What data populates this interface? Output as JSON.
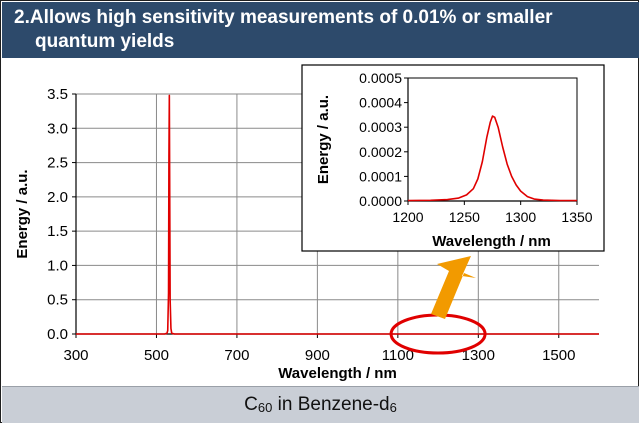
{
  "title": {
    "line1": "2.Allows high sensitivity measurements of 0.01% or smaller",
    "line2": "quantum yields"
  },
  "footer": {
    "prefix": "C",
    "sub1": "60",
    "middle": " in Benzene-d",
    "sub2": "6"
  },
  "colors": {
    "title_bar": "#2d4a6b",
    "series": "#e00000",
    "highlight_circle": "#e00000",
    "arrow": "#f29a00",
    "footer_bg": "#c9ced6"
  },
  "chart_data": [
    {
      "type": "line",
      "xlabel": "Wavelength / nm",
      "ylabel": "Energy / a.u.",
      "xlim": [
        300,
        1600
      ],
      "ylim": [
        0,
        3.5
      ],
      "x_ticks": [
        300,
        500,
        700,
        900,
        1100,
        1300,
        1500
      ],
      "y_ticks": [
        "0.0",
        "0.5",
        "1.0",
        "1.5",
        "2.0",
        "2.5",
        "3.0",
        "3.5"
      ],
      "grid": true,
      "series": [
        {
          "x": [
            300,
            520,
            526,
            528,
            530,
            531,
            532,
            533,
            534,
            536,
            538,
            545,
            600,
            1600
          ],
          "y": [
            0,
            0,
            0.01,
            0.05,
            0.6,
            2.6,
            3.48,
            2.0,
            0.5,
            0.08,
            0.01,
            0,
            0,
            0
          ]
        }
      ],
      "annotation": {
        "shape": "ellipse",
        "x_center": 1200,
        "y_center": 0,
        "note": "highlights emission region around 1275 nm"
      }
    },
    {
      "type": "line",
      "xlabel": "Wavelength / nm",
      "ylabel": "Energy / a.u.",
      "xlim": [
        1200,
        1350
      ],
      "ylim": [
        0,
        0.0005
      ],
      "x_ticks": [
        1200,
        1250,
        1300,
        1350
      ],
      "y_ticks": [
        "0.0000",
        "0.0001",
        "0.0002",
        "0.0003",
        "0.0004",
        "0.0005"
      ],
      "grid": false,
      "series": [
        {
          "x": [
            1200,
            1220,
            1235,
            1245,
            1252,
            1258,
            1262,
            1266,
            1270,
            1273,
            1275,
            1277,
            1280,
            1284,
            1288,
            1292,
            1296,
            1300,
            1306,
            1312,
            1320,
            1335,
            1350
          ],
          "y": [
            2e-06,
            3e-06,
            6e-06,
            1.2e-05,
            2.5e-05,
            5e-05,
            9e-05,
            0.00016,
            0.00026,
            0.00032,
            0.000345,
            0.00034,
            0.0003,
            0.00022,
            0.00015,
            0.0001,
            6.5e-05,
            4e-05,
            1.8e-05,
            8e-06,
            4e-06,
            2e-06,
            2e-06
          ]
        }
      ]
    }
  ]
}
